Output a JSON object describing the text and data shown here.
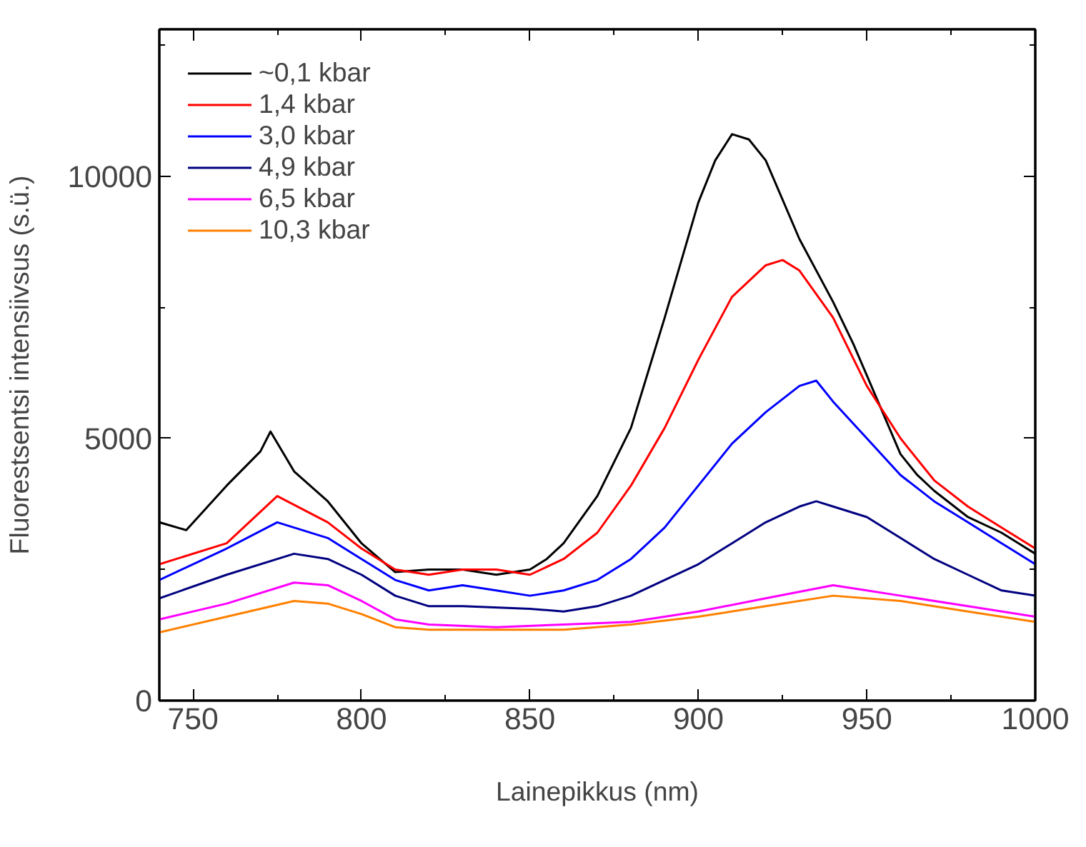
{
  "chart_data": {
    "type": "line",
    "xlabel": "Lainepikkus (nm)",
    "ylabel": "Fluorestsentsi intensiivsus (s.ü.)",
    "xlim": [
      740,
      1000
    ],
    "ylim": [
      0,
      12800
    ],
    "xticks": [
      750,
      {
        "value": 775,
        "label": null
      },
      800,
      {
        "value": 825,
        "label": null
      },
      850,
      {
        "value": 875,
        "label": null
      },
      900,
      {
        "value": 925,
        "label": null
      },
      950,
      {
        "value": 975,
        "label": null
      },
      1000
    ],
    "yticks": [
      0,
      {
        "value": 2500,
        "label": null
      },
      5000,
      {
        "value": 7500,
        "label": null
      },
      10000,
      {
        "value": 12500,
        "label": null
      }
    ],
    "grid": false,
    "legend": "top left",
    "line_style": "solid",
    "marker": "none",
    "series": [
      {
        "name": "~0,1 kbar",
        "color": "#000000",
        "x": [
          740,
          748,
          760,
          770,
          773,
          780,
          790,
          800,
          810,
          820,
          830,
          840,
          850,
          855,
          860,
          870,
          880,
          890,
          900,
          905,
          910,
          915,
          920,
          930,
          940,
          946,
          950,
          960,
          965,
          970,
          980,
          990,
          1000
        ],
        "values": [
          3400,
          3250,
          4100,
          4750,
          5130,
          4370,
          3800,
          3000,
          2450,
          2500,
          2500,
          2400,
          2500,
          2700,
          3000,
          3900,
          5200,
          7300,
          9500,
          10300,
          10800,
          10700,
          10300,
          8800,
          7600,
          6800,
          6200,
          4700,
          4300,
          4000,
          3500,
          3200,
          2800
        ]
      },
      {
        "name": "1,4 kbar",
        "color": "#ff0000",
        "x": [
          740,
          760,
          775,
          790,
          800,
          810,
          820,
          830,
          840,
          850,
          860,
          870,
          880,
          890,
          900,
          910,
          920,
          925,
          930,
          940,
          950,
          960,
          970,
          980,
          990,
          1000
        ],
        "values": [
          2600,
          3000,
          3900,
          3400,
          2900,
          2500,
          2400,
          2500,
          2500,
          2400,
          2700,
          3200,
          4100,
          5200,
          6500,
          7700,
          8300,
          8400,
          8200,
          7300,
          6000,
          5000,
          4200,
          3700,
          3300,
          2900
        ]
      },
      {
        "name": "3,0 kbar",
        "color": "#0000ff",
        "x": [
          740,
          760,
          775,
          790,
          800,
          810,
          820,
          830,
          840,
          850,
          860,
          870,
          880,
          890,
          900,
          910,
          920,
          930,
          935,
          940,
          950,
          960,
          970,
          980,
          990,
          1000
        ],
        "values": [
          2300,
          2900,
          3400,
          3100,
          2700,
          2300,
          2100,
          2200,
          2100,
          2000,
          2100,
          2300,
          2700,
          3300,
          4100,
          4900,
          5500,
          6000,
          6100,
          5700,
          5000,
          4300,
          3800,
          3400,
          3000,
          2600
        ]
      },
      {
        "name": "4,9 kbar",
        "color": "#000080",
        "x": [
          740,
          760,
          780,
          790,
          800,
          810,
          820,
          830,
          850,
          860,
          870,
          880,
          890,
          900,
          910,
          920,
          930,
          935,
          940,
          950,
          960,
          970,
          980,
          990,
          1000
        ],
        "values": [
          1950,
          2400,
          2800,
          2700,
          2400,
          2000,
          1800,
          1800,
          1750,
          1700,
          1800,
          2000,
          2300,
          2600,
          3000,
          3400,
          3700,
          3800,
          3700,
          3500,
          3100,
          2700,
          2400,
          2100,
          2000
        ]
      },
      {
        "name": "6,5 kbar",
        "color": "#ff00ff",
        "x": [
          740,
          760,
          780,
          790,
          800,
          810,
          820,
          840,
          860,
          880,
          900,
          920,
          940,
          950,
          960,
          980,
          1000
        ],
        "values": [
          1550,
          1850,
          2250,
          2200,
          1900,
          1550,
          1450,
          1400,
          1450,
          1500,
          1700,
          1950,
          2200,
          2100,
          2000,
          1800,
          1600
        ]
      },
      {
        "name": "10,3 kbar",
        "color": "#ff8000",
        "x": [
          740,
          760,
          780,
          790,
          800,
          810,
          820,
          840,
          860,
          880,
          900,
          920,
          940,
          960,
          980,
          1000
        ],
        "values": [
          1300,
          1600,
          1900,
          1850,
          1650,
          1400,
          1350,
          1350,
          1350,
          1450,
          1600,
          1800,
          2000,
          1900,
          1700,
          1500
        ]
      }
    ]
  }
}
